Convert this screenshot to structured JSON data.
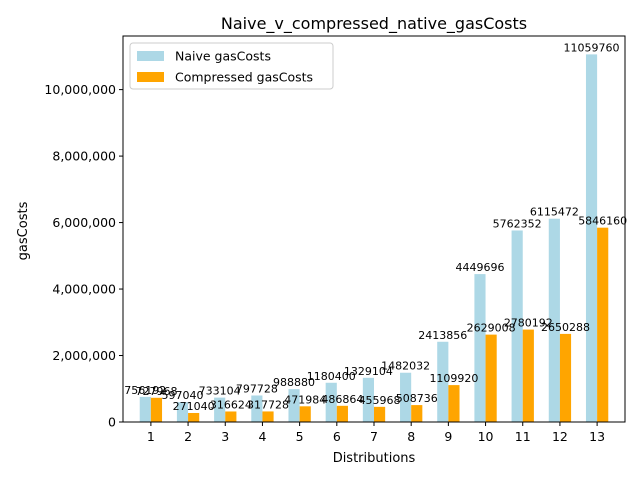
{
  "chart_data": {
    "type": "bar",
    "title": "Naive_v_compressed_native_gasCosts",
    "xlabel": "Distributions",
    "ylabel": "gasCosts",
    "categories": [
      "1",
      "2",
      "3",
      "4",
      "5",
      "6",
      "7",
      "8",
      "9",
      "10",
      "11",
      "12",
      "13"
    ],
    "series": [
      {
        "name": "Naive gasCosts",
        "color": "#add8e6",
        "values": [
          756192,
          597040,
          733104,
          797728,
          988880,
          1180400,
          1329104,
          1482032,
          2413856,
          4449696,
          5762352,
          6115472,
          11059760
        ]
      },
      {
        "name": "Compressed gasCosts",
        "color": "#ffa500",
        "values": [
          727968,
          271040,
          316624,
          317728,
          471984,
          486864,
          455968,
          508736,
          1109920,
          2629008,
          2780192,
          2650288,
          5846160
        ]
      }
    ],
    "yticks": [
      0,
      2000000,
      4000000,
      6000000,
      8000000,
      10000000
    ],
    "ytick_labels": [
      "0",
      "2,000,000",
      "4,000,000",
      "6,000,000",
      "8,000,000",
      "10,000,000"
    ],
    "ylim": [
      0,
      11612748
    ],
    "grid": false,
    "legend_position": "top-left"
  }
}
